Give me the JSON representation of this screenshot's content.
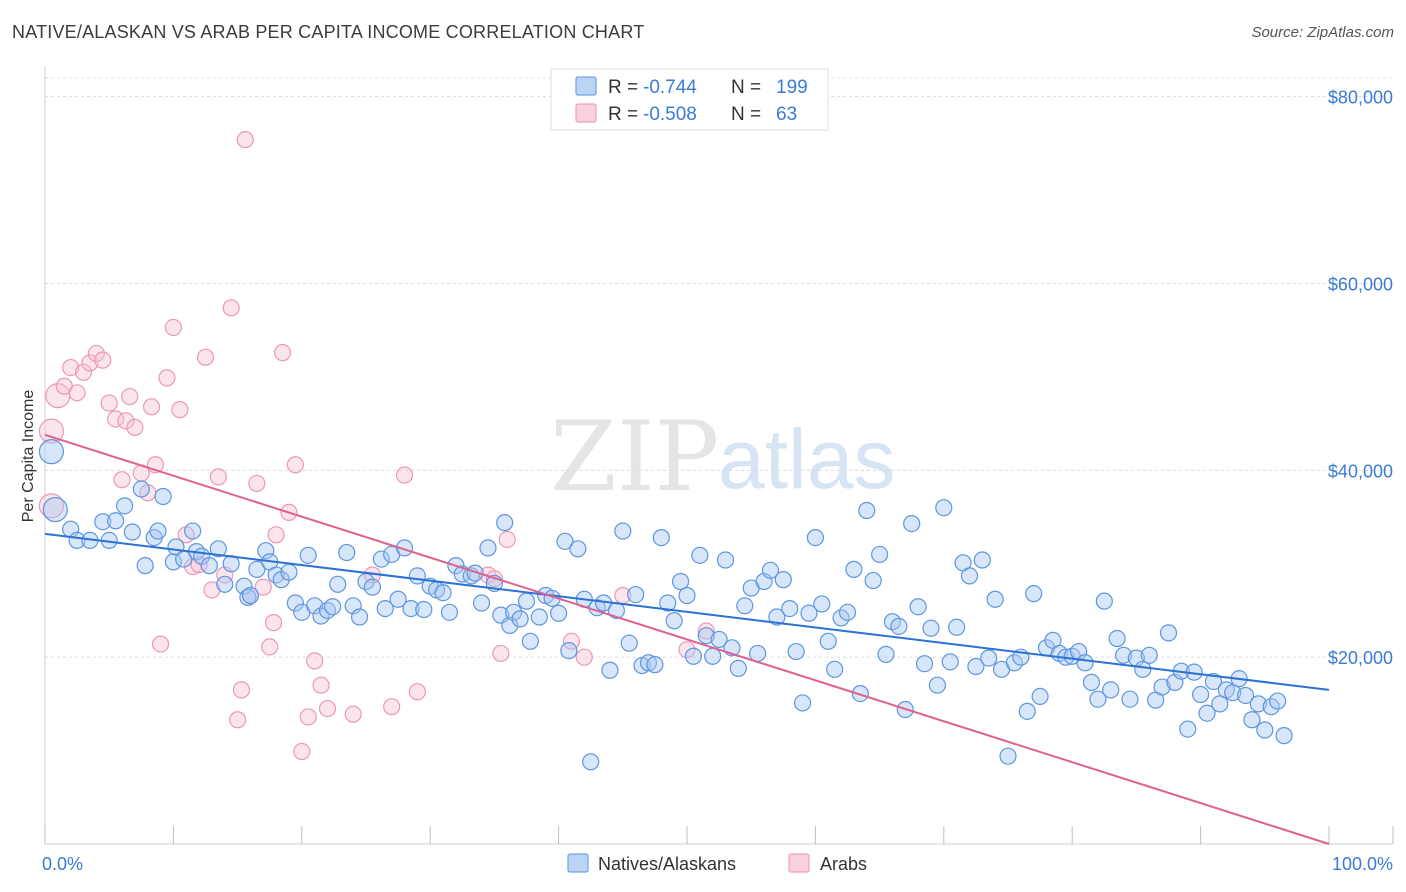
{
  "title": "NATIVE/ALASKAN VS ARAB PER CAPITA INCOME CORRELATION CHART",
  "source": "Source: ZipAtlas.com",
  "watermark": {
    "part1": "ZIP",
    "part2": "atlas"
  },
  "colors": {
    "blue": "#6fa3e8",
    "blueLine": "#2a72d4",
    "pink": "#f0a0bb",
    "pinkLine": "#e0608e",
    "tick": "#3a7bd5"
  },
  "legend_top": {
    "rows": [
      {
        "r_label": "R =",
        "r_value": "-0.744",
        "n_label": "N =",
        "n_value": "199"
      },
      {
        "r_label": "R =",
        "r_value": "-0.508",
        "n_label": "N =",
        "n_value": "63"
      }
    ]
  },
  "chart_data": {
    "type": "scatter",
    "title": "NATIVE/ALASKAN VS ARAB PER CAPITA INCOME CORRELATION CHART",
    "xlabel": "",
    "ylabel": "Per Capita Income",
    "xlim": [
      0,
      100
    ],
    "ylim": [
      0,
      82000
    ],
    "x_tick_labels": [
      "0.0%",
      "100.0%"
    ],
    "y_ticks": [
      20000,
      40000,
      60000,
      80000
    ],
    "y_tick_labels": [
      "$20,000",
      "$40,000",
      "$60,000",
      "$80,000"
    ],
    "grid": true,
    "legend_position": "bottom-center",
    "series": [
      {
        "name": "Natives/Alaskans",
        "color": "#6fa3e8",
        "trend": {
          "x": [
            0,
            100
          ],
          "y": [
            33200,
            16500
          ]
        },
        "points": [
          [
            0.5,
            42000
          ],
          [
            0.8,
            35800
          ],
          [
            2,
            33700
          ],
          [
            2.5,
            32500
          ],
          [
            3.5,
            32500
          ],
          [
            4.5,
            34500
          ],
          [
            5,
            32500
          ],
          [
            5.5,
            34600
          ],
          [
            6.2,
            36200
          ],
          [
            6.8,
            33400
          ],
          [
            7.5,
            38000
          ],
          [
            7.8,
            29800
          ],
          [
            8.5,
            32800
          ],
          [
            8.8,
            33500
          ],
          [
            9.2,
            37200
          ],
          [
            10,
            30200
          ],
          [
            10.2,
            31800
          ],
          [
            10.8,
            30500
          ],
          [
            11.5,
            33500
          ],
          [
            11.8,
            31300
          ],
          [
            12.2,
            30800
          ],
          [
            12.8,
            29800
          ],
          [
            13.5,
            31600
          ],
          [
            14,
            27800
          ],
          [
            14.5,
            30000
          ],
          [
            15.5,
            27600
          ],
          [
            15.8,
            26400
          ],
          [
            16,
            26600
          ],
          [
            16.5,
            29400
          ],
          [
            17.2,
            31400
          ],
          [
            17.5,
            30200
          ],
          [
            18,
            28800
          ],
          [
            18.4,
            28300
          ],
          [
            19,
            29100
          ],
          [
            19.5,
            25800
          ],
          [
            20,
            24800
          ],
          [
            20.5,
            30900
          ],
          [
            21,
            25500
          ],
          [
            21.5,
            24400
          ],
          [
            22,
            25000
          ],
          [
            22.4,
            25400
          ],
          [
            22.8,
            27800
          ],
          [
            23.5,
            31200
          ],
          [
            24,
            25500
          ],
          [
            24.5,
            24300
          ],
          [
            25,
            28100
          ],
          [
            25.5,
            27500
          ],
          [
            26.2,
            30500
          ],
          [
            26.5,
            25200
          ],
          [
            27,
            31000
          ],
          [
            27.5,
            26200
          ],
          [
            28,
            31700
          ],
          [
            28.5,
            25200
          ],
          [
            29,
            28700
          ],
          [
            29.5,
            25100
          ],
          [
            30,
            27600
          ],
          [
            30.5,
            27200
          ],
          [
            31,
            26900
          ],
          [
            31.5,
            24800
          ],
          [
            32,
            29800
          ],
          [
            32.5,
            28900
          ],
          [
            33.2,
            28700
          ],
          [
            33.5,
            29000
          ],
          [
            34,
            25800
          ],
          [
            34.5,
            31700
          ],
          [
            35,
            27900
          ],
          [
            35.5,
            24500
          ],
          [
            35.8,
            34400
          ],
          [
            36.2,
            23400
          ],
          [
            36.5,
            24800
          ],
          [
            37,
            24100
          ],
          [
            37.5,
            26000
          ],
          [
            37.8,
            21700
          ],
          [
            38.5,
            24300
          ],
          [
            39,
            26600
          ],
          [
            39.5,
            26300
          ],
          [
            40,
            24700
          ],
          [
            40.5,
            32400
          ],
          [
            40.8,
            20700
          ],
          [
            41.5,
            31600
          ],
          [
            42,
            26200
          ],
          [
            42.5,
            8800
          ],
          [
            43,
            25300
          ],
          [
            43.5,
            25800
          ],
          [
            44,
            18600
          ],
          [
            44.5,
            25000
          ],
          [
            45,
            33500
          ],
          [
            45.5,
            21500
          ],
          [
            46,
            26700
          ],
          [
            46.5,
            19100
          ],
          [
            47,
            19400
          ],
          [
            47.5,
            19200
          ],
          [
            48,
            32800
          ],
          [
            48.5,
            25800
          ],
          [
            49,
            23900
          ],
          [
            49.5,
            28100
          ],
          [
            50,
            26600
          ],
          [
            50.5,
            20100
          ],
          [
            51,
            30900
          ],
          [
            51.5,
            22300
          ],
          [
            52,
            20100
          ],
          [
            52.5,
            21900
          ],
          [
            53,
            30400
          ],
          [
            53.5,
            21000
          ],
          [
            54,
            18800
          ],
          [
            54.5,
            25500
          ],
          [
            55,
            27400
          ],
          [
            55.5,
            20400
          ],
          [
            56,
            28100
          ],
          [
            56.5,
            29300
          ],
          [
            57,
            24300
          ],
          [
            57.5,
            28300
          ],
          [
            58,
            25200
          ],
          [
            58.5,
            20600
          ],
          [
            59,
            15100
          ],
          [
            59.5,
            24700
          ],
          [
            60,
            32800
          ],
          [
            60.5,
            25700
          ],
          [
            61,
            21700
          ],
          [
            61.5,
            18700
          ],
          [
            62,
            24200
          ],
          [
            62.5,
            24800
          ],
          [
            63,
            29400
          ],
          [
            63.5,
            16100
          ],
          [
            64,
            35700
          ],
          [
            64.5,
            28200
          ],
          [
            65,
            31000
          ],
          [
            65.5,
            20300
          ],
          [
            66,
            23800
          ],
          [
            66.5,
            23300
          ],
          [
            67,
            14400
          ],
          [
            67.5,
            34300
          ],
          [
            68,
            25400
          ],
          [
            68.5,
            19300
          ],
          [
            69,
            23100
          ],
          [
            69.5,
            17000
          ],
          [
            70,
            36000
          ],
          [
            70.5,
            19500
          ],
          [
            71,
            23200
          ],
          [
            71.5,
            30100
          ],
          [
            72,
            28700
          ],
          [
            72.5,
            19000
          ],
          [
            73,
            30400
          ],
          [
            73.5,
            19900
          ],
          [
            74,
            26200
          ],
          [
            74.5,
            18700
          ],
          [
            75,
            9400
          ],
          [
            75.5,
            19400
          ],
          [
            76,
            20000
          ],
          [
            76.5,
            14200
          ],
          [
            77,
            26800
          ],
          [
            77.5,
            15800
          ],
          [
            78,
            21000
          ],
          [
            78.5,
            21800
          ],
          [
            79,
            20400
          ],
          [
            79.5,
            20000
          ],
          [
            80,
            20100
          ],
          [
            80.5,
            20600
          ],
          [
            81,
            19400
          ],
          [
            81.5,
            17300
          ],
          [
            82,
            15500
          ],
          [
            82.5,
            26000
          ],
          [
            83,
            16500
          ],
          [
            83.5,
            22000
          ],
          [
            84,
            20200
          ],
          [
            84.5,
            15500
          ],
          [
            85,
            19900
          ],
          [
            85.5,
            18700
          ],
          [
            86,
            20200
          ],
          [
            86.5,
            15400
          ],
          [
            87,
            16800
          ],
          [
            87.5,
            22600
          ],
          [
            88,
            17300
          ],
          [
            88.5,
            18500
          ],
          [
            89,
            12300
          ],
          [
            89.5,
            18400
          ],
          [
            90,
            16000
          ],
          [
            90.5,
            14000
          ],
          [
            91,
            17400
          ],
          [
            91.5,
            15000
          ],
          [
            92,
            16500
          ],
          [
            92.5,
            16200
          ],
          [
            93,
            17700
          ],
          [
            93.5,
            15900
          ],
          [
            94,
            13300
          ],
          [
            94.5,
            15000
          ],
          [
            95,
            12200
          ],
          [
            95.5,
            14700
          ],
          [
            96,
            15300
          ],
          [
            96.5,
            11600
          ]
        ]
      },
      {
        "name": "Arabs",
        "color": "#f0a0bb",
        "trend": {
          "x": [
            0,
            100
          ],
          "y": [
            43800,
            0
          ]
        },
        "points": [
          [
            0.5,
            44200
          ],
          [
            0.5,
            36200
          ],
          [
            1,
            48000
          ],
          [
            1.5,
            49000
          ],
          [
            2,
            51000
          ],
          [
            2.5,
            48300
          ],
          [
            3,
            50500
          ],
          [
            3.5,
            51500
          ],
          [
            4,
            52500
          ],
          [
            4.5,
            51800
          ],
          [
            5,
            47200
          ],
          [
            5.5,
            45500
          ],
          [
            6,
            39000
          ],
          [
            6.3,
            45300
          ],
          [
            6.6,
            47900
          ],
          [
            7,
            44600
          ],
          [
            7.5,
            39700
          ],
          [
            8,
            37600
          ],
          [
            8.3,
            46800
          ],
          [
            8.6,
            40600
          ],
          [
            9,
            21400
          ],
          [
            9.5,
            49900
          ],
          [
            10,
            55300
          ],
          [
            10.5,
            46500
          ],
          [
            11,
            33100
          ],
          [
            11.5,
            29700
          ],
          [
            12,
            29900
          ],
          [
            12.5,
            52100
          ],
          [
            13,
            27200
          ],
          [
            13.5,
            39300
          ],
          [
            14,
            28800
          ],
          [
            14.5,
            57400
          ],
          [
            15,
            13300
          ],
          [
            15.3,
            16500
          ],
          [
            15.6,
            75400
          ],
          [
            16,
            26600
          ],
          [
            16.5,
            38600
          ],
          [
            17,
            27500
          ],
          [
            17.5,
            21100
          ],
          [
            17.8,
            23700
          ],
          [
            18,
            33100
          ],
          [
            18.5,
            52600
          ],
          [
            19,
            35500
          ],
          [
            19.5,
            40600
          ],
          [
            20,
            9900
          ],
          [
            20.5,
            13600
          ],
          [
            21,
            19600
          ],
          [
            21.5,
            17000
          ],
          [
            22,
            14500
          ],
          [
            24,
            13900
          ],
          [
            25.5,
            28800
          ],
          [
            27,
            14700
          ],
          [
            28,
            39500
          ],
          [
            29,
            16300
          ],
          [
            34.5,
            28800
          ],
          [
            35,
            28400
          ],
          [
            35.5,
            20400
          ],
          [
            36,
            32600
          ],
          [
            41,
            21700
          ],
          [
            42,
            20000
          ],
          [
            45,
            26600
          ],
          [
            50,
            20800
          ],
          [
            51.5,
            22800
          ]
        ]
      }
    ]
  },
  "bottom_legend": [
    {
      "label": "Natives/Alaskans"
    },
    {
      "label": "Arabs"
    }
  ]
}
